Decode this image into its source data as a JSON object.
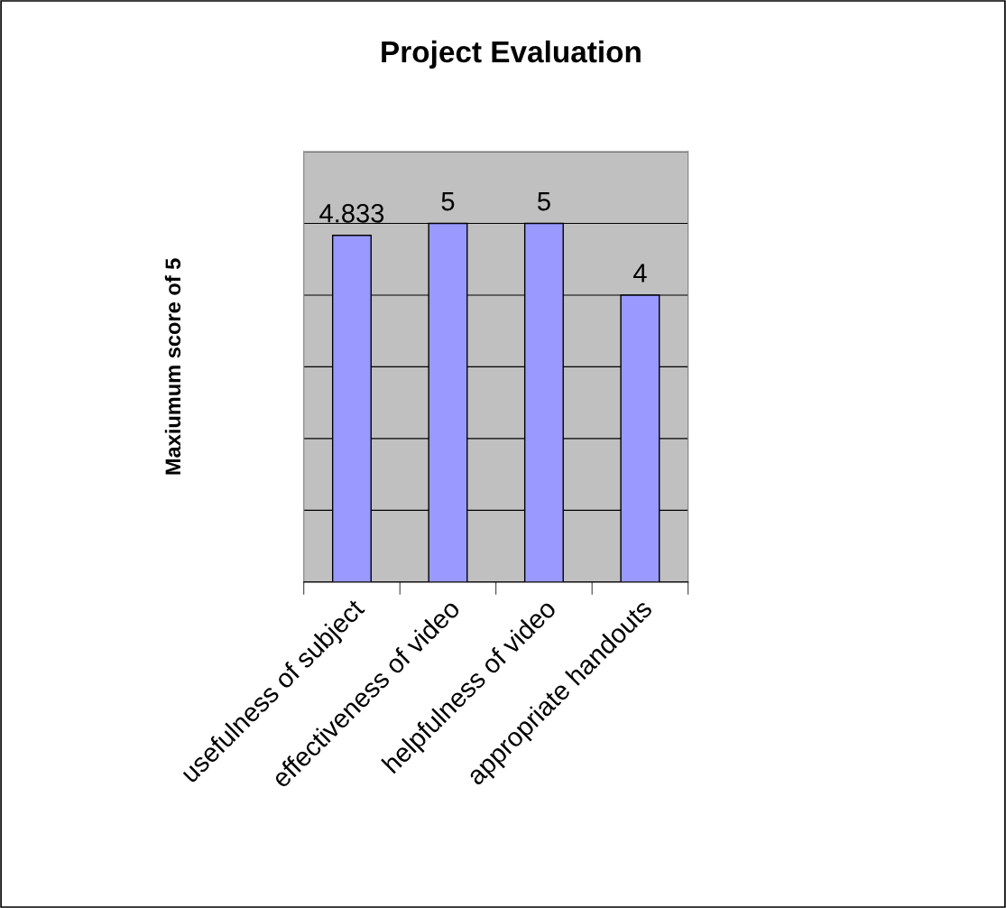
{
  "chart_data": {
    "type": "bar",
    "title": "Project Evaluation",
    "ylabel": "Maxiumum score of 5",
    "categories": [
      "usefulness of subject",
      "effectiveness of video",
      "helpfulness of video",
      "appropriate handouts"
    ],
    "values": [
      4.833,
      5,
      5,
      4
    ],
    "color": "#9999ff",
    "ylim": [
      0,
      6
    ],
    "yticks": [
      {
        "value": 0,
        "label": null
      },
      {
        "value": 1,
        "label": null
      },
      {
        "value": 2,
        "label": null
      },
      {
        "value": 3,
        "label": null
      },
      {
        "value": 4,
        "label": null
      },
      {
        "value": 5,
        "label": null
      },
      {
        "value": 6,
        "label": null
      }
    ],
    "grid": "y",
    "data_labels": true,
    "tick_labels": "x",
    "legend": false
  }
}
